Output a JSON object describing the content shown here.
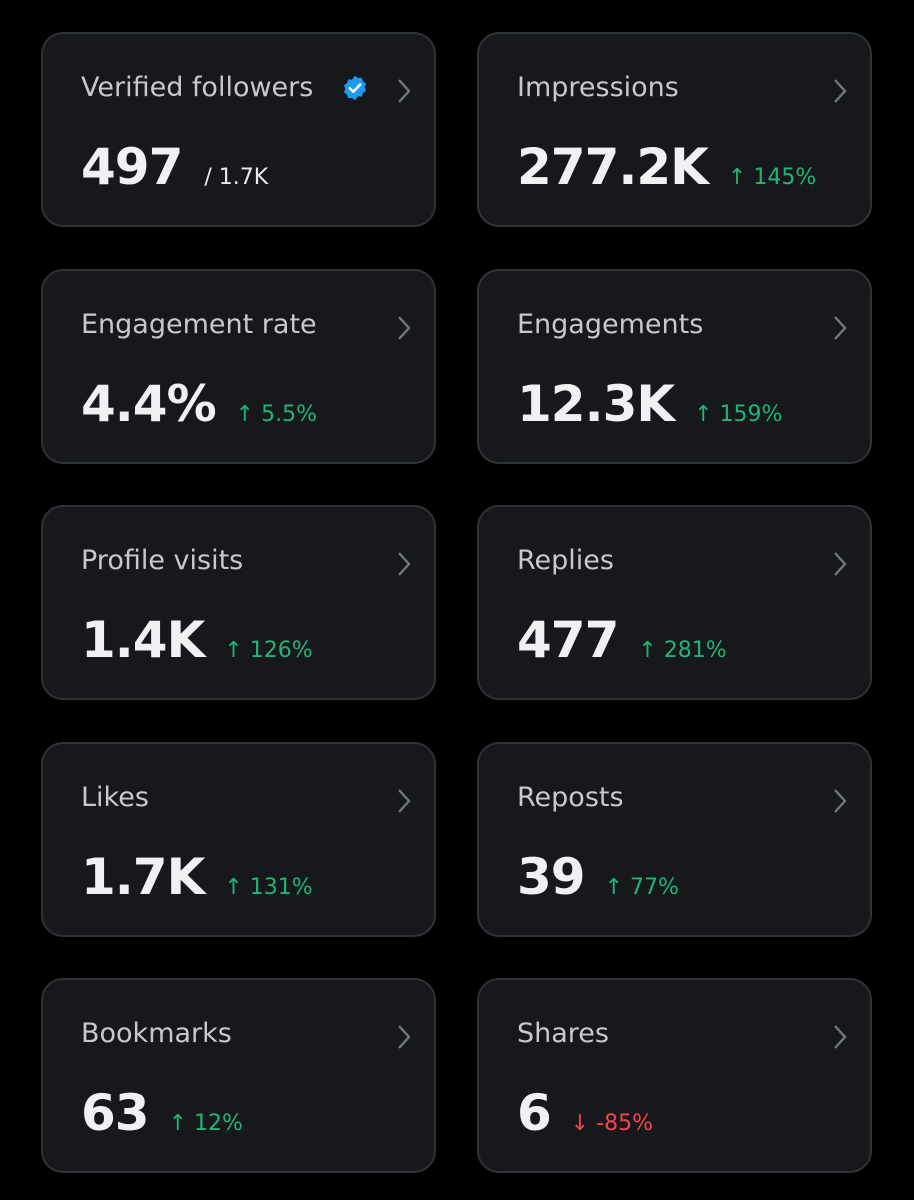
{
  "cards": [
    {
      "label": "Verified followers",
      "value": "497",
      "sub": "/ 1.7K"
    },
    {
      "label": "Impressions",
      "value": "277.2K",
      "change": "↑ 145%",
      "change_color": "#1fb574"
    },
    {
      "label": "Engagement rate",
      "value": "4.4%",
      "change": "↑ 5.5%",
      "change_color": "#1fb574"
    },
    {
      "label": "Engagements",
      "value": "12.3K",
      "change": "↑ 159%",
      "change_color": "#1fb574"
    },
    {
      "label": "Profile visits",
      "value": "1.4K",
      "change": "↑ 126%",
      "change_color": "#1fb574"
    },
    {
      "label": "Replies",
      "value": "477",
      "change": "↑ 281%",
      "change_color": "#1fb574"
    },
    {
      "label": "Likes",
      "value": "1.7K",
      "change": "↑ 131%",
      "change_color": "#1fb574"
    },
    {
      "label": "Reposts",
      "value": "39",
      "change": "↑ 77%",
      "change_color": "#1fb574"
    },
    {
      "label": "Bookmarks",
      "value": "63",
      "change": "↑ 12%",
      "change_color": "#1fb574"
    },
    {
      "label": "Shares",
      "value": "6",
      "change": "↓ -85%",
      "change_color": "#f4414f"
    }
  ]
}
